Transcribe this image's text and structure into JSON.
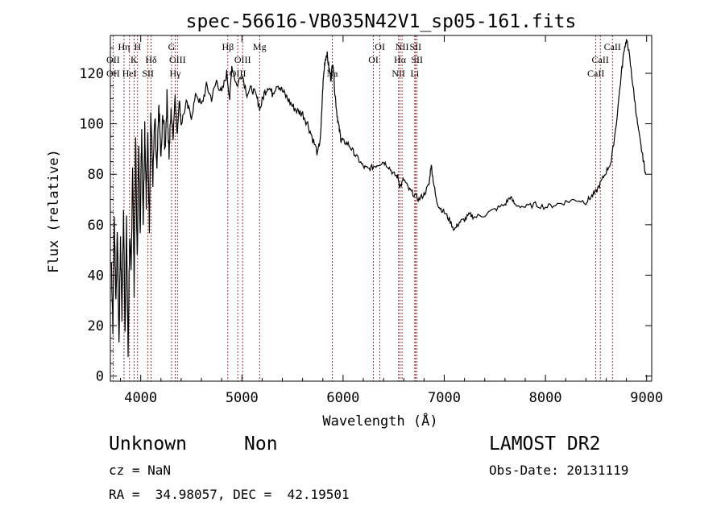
{
  "chart_data": {
    "type": "line",
    "title": "spec-56616-VB035N42V1_sp05-161.fits",
    "xlabel": "Wavelength (Å)",
    "ylabel": "Flux (relative)",
    "xlim": [
      3700,
      9050
    ],
    "ylim": [
      -2,
      135
    ],
    "x_ticks": [
      4000,
      5000,
      6000,
      7000,
      8000,
      9000
    ],
    "y_ticks": [
      0,
      20,
      40,
      60,
      80,
      100,
      120
    ],
    "grid": false,
    "series_color": "#000000",
    "line_color": "#8b0000",
    "spectrum": [
      [
        3710,
        45
      ],
      [
        3725,
        20
      ],
      [
        3740,
        62
      ],
      [
        3755,
        30
      ],
      [
        3770,
        58
      ],
      [
        3785,
        12
      ],
      [
        3800,
        55
      ],
      [
        3815,
        25
      ],
      [
        3830,
        65
      ],
      [
        3845,
        18
      ],
      [
        3860,
        60
      ],
      [
        3875,
        8
      ],
      [
        3890,
        55
      ],
      [
        3905,
        40
      ],
      [
        3920,
        85
      ],
      [
        3935,
        35
      ],
      [
        3950,
        95
      ],
      [
        3965,
        45
      ],
      [
        3980,
        90
      ],
      [
        3995,
        60
      ],
      [
        4010,
        98
      ],
      [
        4025,
        62
      ],
      [
        4040,
        100
      ],
      [
        4055,
        70
      ],
      [
        4070,
        95
      ],
      [
        4085,
        60
      ],
      [
        4100,
        105
      ],
      [
        4120,
        78
      ],
      [
        4140,
        102
      ],
      [
        4160,
        80
      ],
      [
        4180,
        108
      ],
      [
        4200,
        85
      ],
      [
        4220,
        105
      ],
      [
        4240,
        90
      ],
      [
        4260,
        110
      ],
      [
        4280,
        88
      ],
      [
        4300,
        105
      ],
      [
        4320,
        95
      ],
      [
        4340,
        112
      ],
      [
        4360,
        95
      ],
      [
        4380,
        110
      ],
      [
        4400,
        100
      ],
      [
        4450,
        108
      ],
      [
        4500,
        103
      ],
      [
        4550,
        112
      ],
      [
        4600,
        107
      ],
      [
        4650,
        115
      ],
      [
        4700,
        110
      ],
      [
        4750,
        117
      ],
      [
        4800,
        112
      ],
      [
        4850,
        120
      ],
      [
        4880,
        110
      ],
      [
        4900,
        123
      ],
      [
        4950,
        115
      ],
      [
        5000,
        120
      ],
      [
        5050,
        112
      ],
      [
        5100,
        114
      ],
      [
        5150,
        110
      ],
      [
        5180,
        106
      ],
      [
        5220,
        112
      ],
      [
        5260,
        115
      ],
      [
        5300,
        112
      ],
      [
        5350,
        116
      ],
      [
        5400,
        113
      ],
      [
        5450,
        110
      ],
      [
        5500,
        107
      ],
      [
        5550,
        105
      ],
      [
        5600,
        104
      ],
      [
        5650,
        100
      ],
      [
        5700,
        94
      ],
      [
        5750,
        88
      ],
      [
        5780,
        96
      ],
      [
        5800,
        115
      ],
      [
        5820,
        125
      ],
      [
        5840,
        128
      ],
      [
        5860,
        122
      ],
      [
        5880,
        118
      ],
      [
        5900,
        125
      ],
      [
        5920,
        112
      ],
      [
        5940,
        104
      ],
      [
        5960,
        98
      ],
      [
        5980,
        94
      ],
      [
        6000,
        93
      ],
      [
        6050,
        92
      ],
      [
        6100,
        89
      ],
      [
        6150,
        86
      ],
      [
        6200,
        83
      ],
      [
        6250,
        82
      ],
      [
        6300,
        83
      ],
      [
        6350,
        84
      ],
      [
        6400,
        85
      ],
      [
        6450,
        83
      ],
      [
        6500,
        80
      ],
      [
        6540,
        79
      ],
      [
        6563,
        75
      ],
      [
        6600,
        78
      ],
      [
        6650,
        74
      ],
      [
        6700,
        72
      ],
      [
        6750,
        70
      ],
      [
        6800,
        72
      ],
      [
        6850,
        76
      ],
      [
        6870,
        84
      ],
      [
        6890,
        78
      ],
      [
        6920,
        70
      ],
      [
        6950,
        67
      ],
      [
        7000,
        65
      ],
      [
        7050,
        62
      ],
      [
        7100,
        58
      ],
      [
        7150,
        61
      ],
      [
        7200,
        62
      ],
      [
        7250,
        64
      ],
      [
        7300,
        63
      ],
      [
        7400,
        64
      ],
      [
        7500,
        66
      ],
      [
        7600,
        68
      ],
      [
        7650,
        71
      ],
      [
        7700,
        68
      ],
      [
        7800,
        67
      ],
      [
        7900,
        68
      ],
      [
        8000,
        67
      ],
      [
        8100,
        68
      ],
      [
        8200,
        69
      ],
      [
        8300,
        70
      ],
      [
        8400,
        69
      ],
      [
        8450,
        71
      ],
      [
        8500,
        73
      ],
      [
        8550,
        77
      ],
      [
        8600,
        81
      ],
      [
        8650,
        85
      ],
      [
        8700,
        100
      ],
      [
        8750,
        120
      ],
      [
        8780,
        130
      ],
      [
        8800,
        133
      ],
      [
        8820,
        130
      ],
      [
        8850,
        120
      ],
      [
        8880,
        110
      ],
      [
        8910,
        100
      ],
      [
        8940,
        92
      ],
      [
        8970,
        85
      ],
      [
        8990,
        80
      ]
    ],
    "line_markers": [
      {
        "label": "OII",
        "wl": 3727,
        "row": 2
      },
      {
        "label": "OII",
        "wl": 3727,
        "row": 3
      },
      {
        "label": "Hη",
        "wl": 3835,
        "row": 1
      },
      {
        "label": "HeI",
        "wl": 3889,
        "row": 3
      },
      {
        "label": "K",
        "wl": 3934,
        "row": 2
      },
      {
        "label": "H",
        "wl": 3969,
        "row": 1
      },
      {
        "label": "SII",
        "wl": 4072,
        "row": 3
      },
      {
        "label": "Hδ",
        "wl": 4102,
        "row": 2
      },
      {
        "label": "G",
        "wl": 4305,
        "row": 1
      },
      {
        "label": "OIII",
        "wl": 4363,
        "row": 2
      },
      {
        "label": "Hγ",
        "wl": 4341,
        "row": 3
      },
      {
        "label": "Hβ",
        "wl": 4861,
        "row": 1
      },
      {
        "label": "OIII",
        "wl": 4959,
        "row": 3
      },
      {
        "label": "OIII",
        "wl": 5007,
        "row": 2
      },
      {
        "label": "Mg",
        "wl": 5175,
        "row": 1
      },
      {
        "label": "Na",
        "wl": 5893,
        "row": 3
      },
      {
        "label": "OI",
        "wl": 6300,
        "row": 2
      },
      {
        "label": "OI",
        "wl": 6364,
        "row": 1
      },
      {
        "label": "NII",
        "wl": 6548,
        "row": 3
      },
      {
        "label": "Hα",
        "wl": 6563,
        "row": 2
      },
      {
        "label": "NII",
        "wl": 6583,
        "row": 1
      },
      {
        "label": "SII",
        "wl": 6716,
        "row": 1
      },
      {
        "label": "SII",
        "wl": 6731,
        "row": 2
      },
      {
        "label": "Li",
        "wl": 6708,
        "row": 3
      },
      {
        "label": "CaII",
        "wl": 8498,
        "row": 3
      },
      {
        "label": "CaII",
        "wl": 8542,
        "row": 2
      },
      {
        "label": "CaII",
        "wl": 8662,
        "row": 1
      }
    ]
  },
  "footer": {
    "object_type": "Unknown",
    "subclass": "Non",
    "survey": "LAMOST DR2",
    "cz": "cz = NaN",
    "obs_date": "Obs-Date: 20131119",
    "coords": "RA =  34.98057, DEC =  42.19501"
  }
}
